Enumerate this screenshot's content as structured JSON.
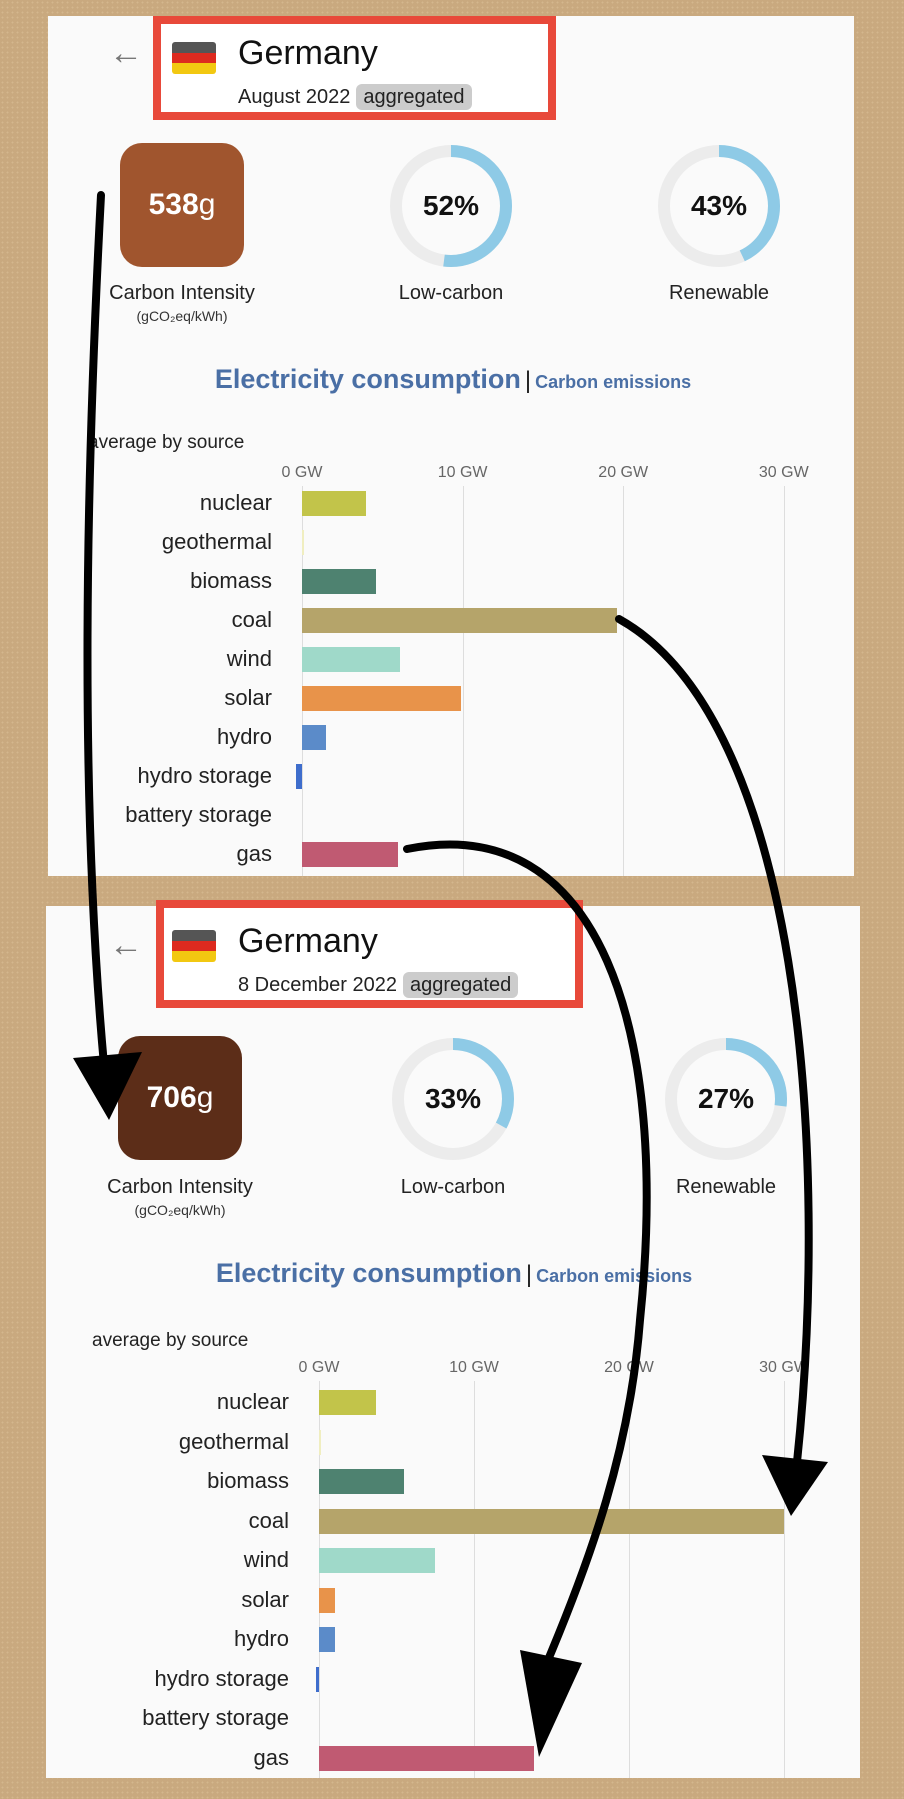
{
  "panels": [
    {
      "back_icon": "arrow-left-icon",
      "country": "Germany",
      "flag_colors": [
        "#555555",
        "#dd2a1f",
        "#f2c811"
      ],
      "period": "August 2022",
      "badge": "aggregated",
      "carbon_intensity": {
        "value": "538",
        "unit": "g",
        "color": "#a0552e",
        "label": "Carbon Intensity",
        "unit_label": "(gCO₂eq/kWh)"
      },
      "low_carbon": {
        "value": "52%",
        "fraction": 0.52,
        "label": "Low-carbon"
      },
      "renewable": {
        "value": "43%",
        "fraction": 0.43,
        "label": "Renewable"
      },
      "section_title": "Electricity consumption",
      "section_alt": "Carbon emissions",
      "chart_caption": "average by source"
    },
    {
      "back_icon": "arrow-left-icon",
      "country": "Germany",
      "flag_colors": [
        "#555555",
        "#dd2a1f",
        "#f2c811"
      ],
      "period": "8 December 2022",
      "badge": "aggregated",
      "carbon_intensity": {
        "value": "706",
        "unit": "g",
        "color": "#5c2d18",
        "label": "Carbon Intensity",
        "unit_label": "(gCO₂eq/kWh)"
      },
      "low_carbon": {
        "value": "33%",
        "fraction": 0.33,
        "label": "Low-carbon"
      },
      "renewable": {
        "value": "27%",
        "fraction": 0.27,
        "label": "Renewable"
      },
      "section_title": "Electricity consumption",
      "section_alt": "Carbon emissions",
      "chart_caption": "average by source"
    }
  ],
  "chart_data": [
    {
      "type": "bar",
      "orientation": "horizontal",
      "title": "Electricity consumption — average by source (August 2022)",
      "xlabel": "GW",
      "xlim": [
        0,
        30
      ],
      "x_ticks": [
        "0 GW",
        "10 GW",
        "20 GW",
        "30 GW"
      ],
      "grid": true,
      "categories": [
        "nuclear",
        "geothermal",
        "biomass",
        "coal",
        "wind",
        "solar",
        "hydro",
        "hydro storage",
        "battery storage",
        "gas"
      ],
      "values": [
        4.0,
        0.05,
        4.6,
        19.6,
        6.1,
        9.9,
        1.5,
        -0.4,
        0,
        6.0
      ],
      "colors": [
        "#c2c44a",
        "#f0eec0",
        "#4e8270",
        "#b5a46a",
        "#9fd9c9",
        "#e8934a",
        "#5b8bc9",
        "#3e6dcc",
        "#a0a0d0",
        "#c05a72"
      ]
    },
    {
      "type": "bar",
      "orientation": "horizontal",
      "title": "Electricity consumption — average by source (8 December 2022)",
      "xlabel": "GW",
      "xlim": [
        0,
        30
      ],
      "x_ticks": [
        "0 GW",
        "10 GW",
        "20 GW",
        "30 GW"
      ],
      "grid": true,
      "categories": [
        "nuclear",
        "geothermal",
        "biomass",
        "coal",
        "wind",
        "solar",
        "hydro",
        "hydro storage",
        "battery storage",
        "gas"
      ],
      "values": [
        3.7,
        0.05,
        5.5,
        30.0,
        7.5,
        1.0,
        1.0,
        -0.2,
        0,
        13.9
      ],
      "colors": [
        "#c2c44a",
        "#f0eec0",
        "#4e8270",
        "#b5a46a",
        "#9fd9c9",
        "#e8934a",
        "#5b8bc9",
        "#3e6dcc",
        "#a0a0d0",
        "#c05a72"
      ]
    }
  ],
  "annotations": {
    "arrow_color": "#000000"
  }
}
